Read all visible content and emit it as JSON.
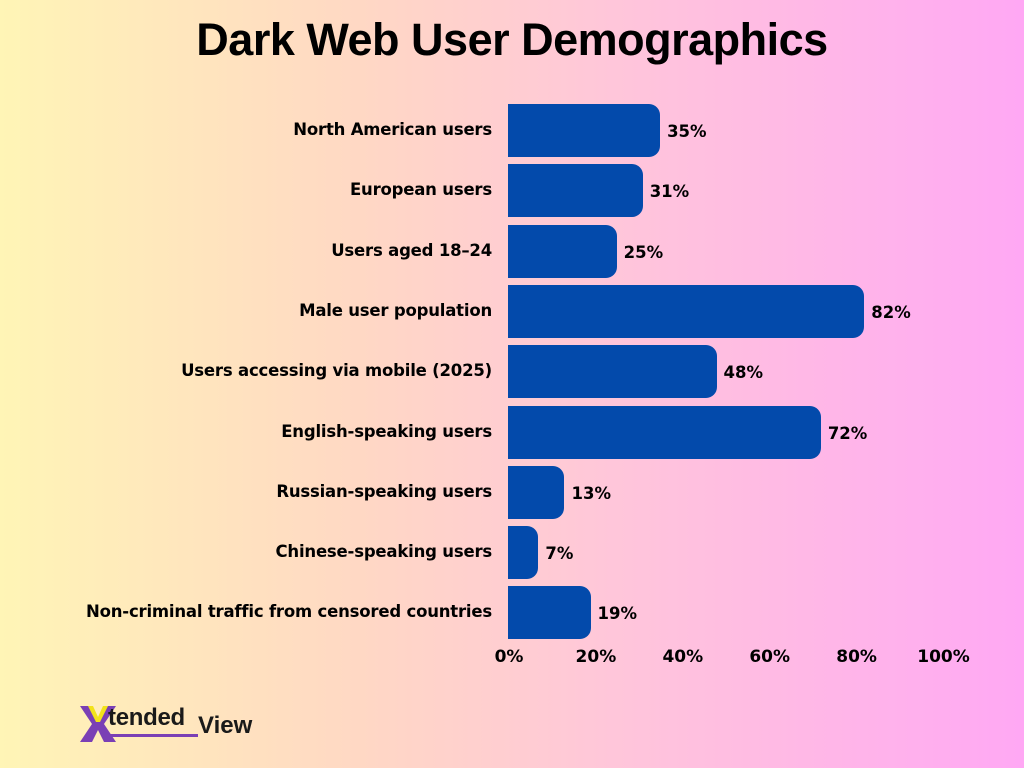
{
  "chart_data": {
    "type": "bar",
    "orientation": "horizontal",
    "title": "Dark Web User Demographics",
    "xlabel": "",
    "ylabel": "",
    "xlim": [
      0,
      100
    ],
    "grid": false,
    "legend": null,
    "categories": [
      "North American users",
      "European users",
      "Users aged 18–24",
      "Male user population",
      "Users accessing via mobile (2025)",
      "English-speaking users",
      "Russian-speaking users",
      "Chinese-speaking users",
      "Non-criminal traffic from censored countries"
    ],
    "values": [
      35,
      31,
      25,
      82,
      48,
      72,
      13,
      7,
      19
    ],
    "value_labels": [
      "35%",
      "31%",
      "25%",
      "82%",
      "48%",
      "72%",
      "13%",
      "7%",
      "19%"
    ],
    "x_ticks": [
      "0%",
      "20%",
      "40%",
      "60%",
      "80%",
      "100%"
    ],
    "x_tick_values": [
      0,
      20,
      40,
      60,
      80,
      100
    ],
    "bar_color": "#034aab"
  },
  "title": "Dark Web User Demographics",
  "logo": {
    "part1": "tended",
    "part2": "View",
    "mark": "X"
  },
  "colors": {
    "bar": "#034aab",
    "bg_left": "#fff5b6",
    "bg_right": "#ffa8f4",
    "logo_purple": "#7a3fb5",
    "logo_yellow": "#f2e21a"
  }
}
